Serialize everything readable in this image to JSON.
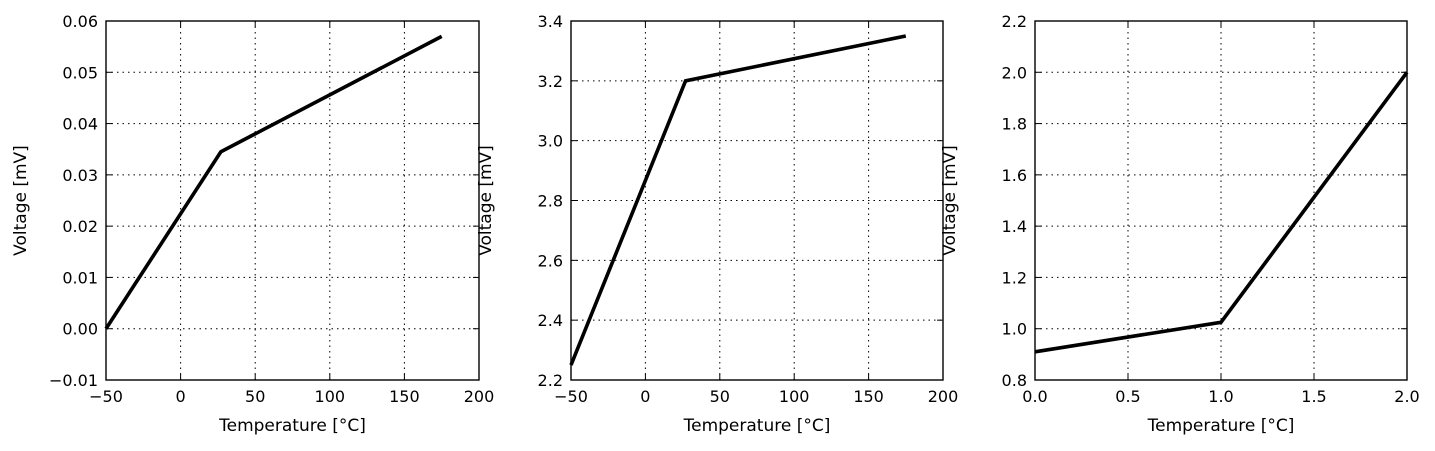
{
  "chart_data": [
    {
      "type": "line",
      "title": "",
      "xlabel": "Temperature [°C]",
      "ylabel": "Voltage [mV]",
      "xlim": [
        -50,
        200
      ],
      "ylim": [
        -0.01,
        0.06
      ],
      "xticks": [
        -50,
        0,
        50,
        100,
        150,
        200
      ],
      "xtick_labels": [
        "−50",
        "0",
        "50",
        "100",
        "150",
        "200"
      ],
      "yticks": [
        -0.01,
        0.0,
        0.01,
        0.02,
        0.03,
        0.04,
        0.05,
        0.06
      ],
      "ytick_labels": [
        "−0.01",
        "0.00",
        "0.01",
        "0.02",
        "0.03",
        "0.04",
        "0.05",
        "0.06"
      ],
      "grid": true,
      "series": [
        {
          "x": [
            -50,
            27,
            175
          ],
          "y": [
            0.0,
            0.0345,
            0.057
          ]
        }
      ]
    },
    {
      "type": "line",
      "title": "",
      "xlabel": "Temperature [°C]",
      "ylabel": "Voltage [mV]",
      "xlim": [
        -50,
        200
      ],
      "ylim": [
        2.2,
        3.4
      ],
      "xticks": [
        -50,
        0,
        50,
        100,
        150,
        200
      ],
      "xtick_labels": [
        "−50",
        "0",
        "50",
        "100",
        "150",
        "200"
      ],
      "yticks": [
        2.2,
        2.4,
        2.6,
        2.8,
        3.0,
        3.2,
        3.4
      ],
      "ytick_labels": [
        "2.2",
        "2.4",
        "2.6",
        "2.8",
        "3.0",
        "3.2",
        "3.4"
      ],
      "grid": true,
      "series": [
        {
          "x": [
            -50,
            27,
            175
          ],
          "y": [
            2.25,
            3.2,
            3.35
          ]
        }
      ]
    },
    {
      "type": "line",
      "title": "",
      "xlabel": "Temperature [°C]",
      "ylabel": "Voltage [mV]",
      "xlim": [
        0.0,
        2.0
      ],
      "ylim": [
        0.8,
        2.2
      ],
      "xticks": [
        0.0,
        0.5,
        1.0,
        1.5,
        2.0
      ],
      "xtick_labels": [
        "0.0",
        "0.5",
        "1.0",
        "1.5",
        "2.0"
      ],
      "yticks": [
        0.8,
        1.0,
        1.2,
        1.4,
        1.6,
        1.8,
        2.0,
        2.2
      ],
      "ytick_labels": [
        "0.8",
        "1.0",
        "1.2",
        "1.4",
        "1.6",
        "1.8",
        "2.0",
        "2.2"
      ],
      "grid": true,
      "series": [
        {
          "x": [
            0.0,
            1.0,
            2.0
          ],
          "y": [
            0.91,
            1.025,
            2.0
          ]
        }
      ]
    }
  ]
}
